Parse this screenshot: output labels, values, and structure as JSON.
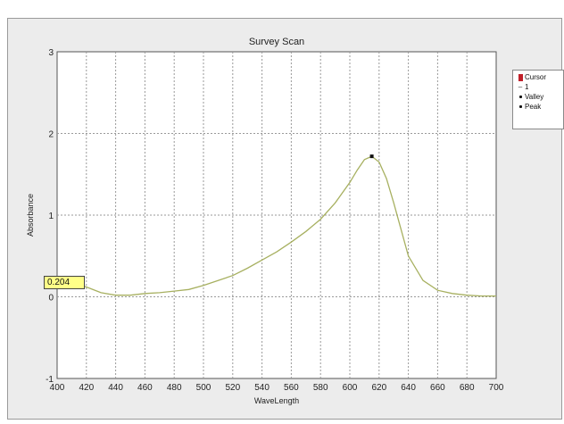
{
  "chart_data": {
    "type": "line",
    "title": "Survey Scan",
    "xlabel": "WaveLength",
    "ylabel": "Absorbance",
    "xlim": [
      400,
      700
    ],
    "ylim": [
      -1,
      3
    ],
    "x_ticks": [
      "400",
      "420",
      "440",
      "460",
      "480",
      "500",
      "520",
      "540",
      "560",
      "580",
      "600",
      "620",
      "640",
      "660",
      "680",
      "700"
    ],
    "y_ticks": [
      "3",
      "2",
      "1",
      "0",
      "-1"
    ],
    "grid": true,
    "legend_position": "top-right",
    "legend": [
      {
        "label": "Cursor",
        "symbol": "red-square"
      },
      {
        "label": "1",
        "symbol": "dash"
      },
      {
        "label": "Valley",
        "symbol": "dot"
      },
      {
        "label": "Peak",
        "symbol": "dot"
      }
    ],
    "series": [
      {
        "name": "1",
        "color": "#a7b060",
        "x": [
          400,
          410,
          420,
          430,
          440,
          450,
          460,
          470,
          480,
          490,
          500,
          510,
          520,
          530,
          540,
          550,
          560,
          570,
          580,
          590,
          600,
          605,
          610,
          615,
          620,
          625,
          630,
          640,
          650,
          660,
          670,
          680,
          690,
          700
        ],
        "y": [
          0.21,
          0.18,
          0.12,
          0.05,
          0.02,
          0.02,
          0.04,
          0.05,
          0.07,
          0.09,
          0.14,
          0.2,
          0.26,
          0.35,
          0.45,
          0.55,
          0.67,
          0.8,
          0.95,
          1.15,
          1.4,
          1.55,
          1.68,
          1.72,
          1.65,
          1.45,
          1.15,
          0.5,
          0.2,
          0.08,
          0.04,
          0.02,
          0.01,
          0.01
        ]
      }
    ],
    "peak": {
      "x": 615,
      "y": 1.72
    },
    "cursor": {
      "x": 400,
      "y": 0.204,
      "label": "0.204"
    }
  },
  "colors": {
    "panel_bg": "#ececec",
    "plot_bg": "#ffffff",
    "line": "#a7b060",
    "grid": "#9a9a9a",
    "cursor_box": "#ffff88"
  }
}
